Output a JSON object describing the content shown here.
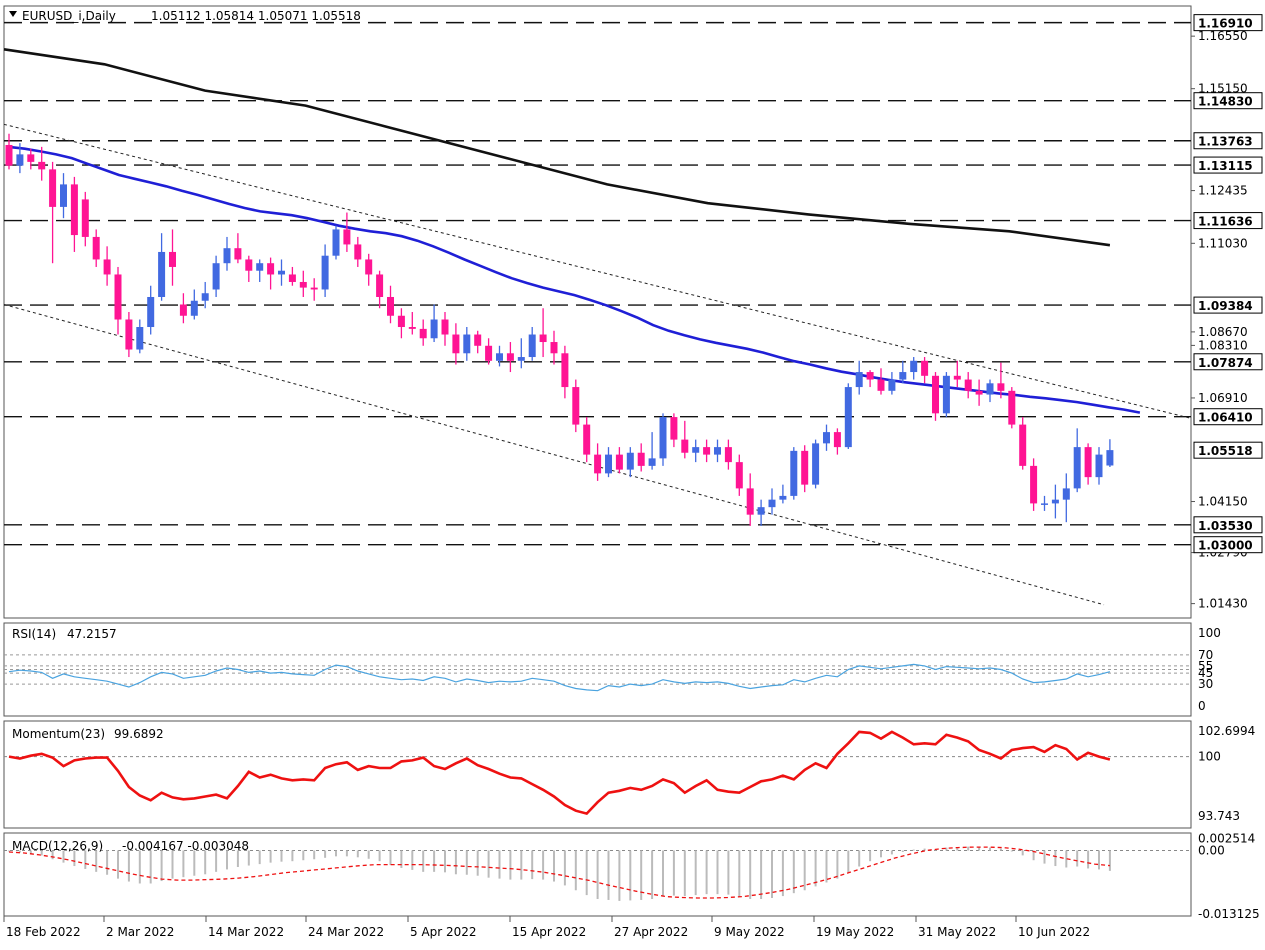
{
  "header": {
    "symbol": "EURUSD_i,Daily",
    "ohlc": "1.05112 1.05814 1.05071 1.05518"
  },
  "colors": {
    "bull": "#4169e1",
    "bear": "#ff1493",
    "ma_fast": "#1f1fd6",
    "ma_slow": "#111111",
    "rsi": "#4aa3df",
    "momentum": "#ee1111",
    "macd_hist": "#bbbbbb",
    "macd_signal": "#ee1111"
  },
  "chart_data": [
    {
      "type": "candlestick",
      "name": "EURUSD_i,Daily",
      "ylim": [
        1.011,
        1.173
      ],
      "y_ticks": [
        "1.16550",
        "1.15150",
        "1.12435",
        "1.11030",
        "1.08670",
        "1.08310",
        "1.06910",
        "1.04150",
        "1.02790",
        "1.01430"
      ],
      "x_labels": [
        "18 Feb 2022",
        "2 Mar 2022",
        "14 Mar 2022",
        "24 Mar 2022",
        "5 Apr 2022",
        "15 Apr 2022",
        "27 Apr 2022",
        "9 May 2022",
        "19 May 2022",
        "31 May 2022",
        "10 Jun 2022"
      ],
      "horizontal_levels": [
        "1.16910",
        "1.14830",
        "1.13763",
        "1.13115",
        "1.11636",
        "1.09384",
        "1.07874",
        "1.06410",
        "1.05518",
        "1.03530",
        "1.03000"
      ],
      "ohlc": [
        [
          1.1365,
          1.1395,
          1.13,
          1.131
        ],
        [
          1.131,
          1.137,
          1.129,
          1.134
        ],
        [
          1.134,
          1.1355,
          1.13,
          1.132
        ],
        [
          1.132,
          1.136,
          1.127,
          1.13
        ],
        [
          1.13,
          1.132,
          1.105,
          1.12
        ],
        [
          1.12,
          1.129,
          1.117,
          1.126
        ],
        [
          1.126,
          1.128,
          1.108,
          1.1125
        ],
        [
          1.122,
          1.124,
          1.1095,
          1.112
        ],
        [
          1.112,
          1.114,
          1.104,
          1.106
        ],
        [
          1.106,
          1.1095,
          1.099,
          1.102
        ],
        [
          1.102,
          1.104,
          1.086,
          1.09
        ],
        [
          1.09,
          1.092,
          1.08,
          1.082
        ],
        [
          1.082,
          1.09,
          1.081,
          1.088
        ],
        [
          1.088,
          1.099,
          1.086,
          1.096
        ],
        [
          1.096,
          1.113,
          1.095,
          1.108
        ],
        [
          1.108,
          1.114,
          1.099,
          1.104
        ],
        [
          1.094,
          1.097,
          1.089,
          1.091
        ],
        [
          1.091,
          1.098,
          1.09,
          1.095
        ],
        [
          1.095,
          1.1,
          1.093,
          1.097
        ],
        [
          1.098,
          1.107,
          1.096,
          1.105
        ],
        [
          1.105,
          1.112,
          1.103,
          1.109
        ],
        [
          1.109,
          1.113,
          1.105,
          1.106
        ],
        [
          1.106,
          1.107,
          1.1,
          1.103
        ],
        [
          1.103,
          1.106,
          1.1,
          1.105
        ],
        [
          1.105,
          1.1065,
          1.098,
          1.102
        ],
        [
          1.102,
          1.106,
          1.099,
          1.103
        ],
        [
          1.102,
          1.104,
          1.099,
          1.1
        ],
        [
          1.1,
          1.103,
          1.096,
          1.0985
        ],
        [
          1.0985,
          1.101,
          1.095,
          1.098
        ],
        [
          1.098,
          1.11,
          1.096,
          1.107
        ],
        [
          1.107,
          1.115,
          1.106,
          1.114
        ],
        [
          1.114,
          1.1185,
          1.108,
          1.11
        ],
        [
          1.11,
          1.112,
          1.104,
          1.106
        ],
        [
          1.106,
          1.1075,
          1.099,
          1.102
        ],
        [
          1.102,
          1.103,
          1.093,
          1.096
        ],
        [
          1.096,
          1.099,
          1.089,
          1.091
        ],
        [
          1.091,
          1.093,
          1.085,
          1.088
        ],
        [
          1.088,
          1.092,
          1.086,
          1.0875
        ],
        [
          1.0875,
          1.09,
          1.083,
          1.085
        ],
        [
          1.085,
          1.094,
          1.084,
          1.09
        ],
        [
          1.09,
          1.092,
          1.083,
          1.086
        ],
        [
          1.086,
          1.089,
          1.078,
          1.081
        ],
        [
          1.081,
          1.088,
          1.079,
          1.086
        ],
        [
          1.086,
          1.087,
          1.081,
          1.083
        ],
        [
          1.083,
          1.085,
          1.078,
          1.079
        ],
        [
          1.079,
          1.083,
          1.0775,
          1.081
        ],
        [
          1.081,
          1.084,
          1.076,
          1.079
        ],
        [
          1.079,
          1.085,
          1.077,
          1.08
        ],
        [
          1.08,
          1.088,
          1.079,
          1.086
        ],
        [
          1.086,
          1.093,
          1.08,
          1.084
        ],
        [
          1.084,
          1.087,
          1.078,
          1.081
        ],
        [
          1.081,
          1.083,
          1.069,
          1.072
        ],
        [
          1.072,
          1.074,
          1.06,
          1.062
        ],
        [
          1.062,
          1.064,
          1.052,
          1.054
        ],
        [
          1.054,
          1.057,
          1.047,
          1.049
        ],
        [
          1.049,
          1.056,
          1.048,
          1.054
        ],
        [
          1.054,
          1.056,
          1.049,
          1.05
        ],
        [
          1.05,
          1.056,
          1.048,
          1.0545
        ],
        [
          1.0545,
          1.057,
          1.0495,
          1.051
        ],
        [
          1.051,
          1.06,
          1.05,
          1.053
        ],
        [
          1.053,
          1.065,
          1.051,
          1.064
        ],
        [
          1.064,
          1.065,
          1.056,
          1.058
        ],
        [
          1.058,
          1.063,
          1.053,
          1.0545
        ],
        [
          1.0545,
          1.058,
          1.052,
          1.056
        ],
        [
          1.056,
          1.058,
          1.052,
          1.054
        ],
        [
          1.054,
          1.058,
          1.052,
          1.056
        ],
        [
          1.056,
          1.058,
          1.05,
          1.052
        ],
        [
          1.052,
          1.054,
          1.043,
          1.045
        ],
        [
          1.045,
          1.049,
          1.035,
          1.038
        ],
        [
          1.038,
          1.042,
          1.035,
          1.04
        ],
        [
          1.04,
          1.045,
          1.038,
          1.042
        ],
        [
          1.042,
          1.046,
          1.041,
          1.043
        ],
        [
          1.043,
          1.056,
          1.042,
          1.055
        ],
        [
          1.055,
          1.0565,
          1.044,
          1.046
        ],
        [
          1.046,
          1.058,
          1.045,
          1.057
        ],
        [
          1.057,
          1.062,
          1.055,
          1.06
        ],
        [
          1.06,
          1.061,
          1.054,
          1.056
        ],
        [
          1.056,
          1.073,
          1.0555,
          1.072
        ],
        [
          1.072,
          1.079,
          1.07,
          1.076
        ],
        [
          1.076,
          1.0765,
          1.072,
          1.074
        ],
        [
          1.074,
          1.077,
          1.07,
          1.071
        ],
        [
          1.071,
          1.076,
          1.07,
          1.074
        ],
        [
          1.074,
          1.079,
          1.073,
          1.076
        ],
        [
          1.076,
          1.08,
          1.074,
          1.079
        ],
        [
          1.079,
          1.08,
          1.073,
          1.075
        ],
        [
          1.075,
          1.076,
          1.063,
          1.065
        ],
        [
          1.065,
          1.076,
          1.064,
          1.075
        ],
        [
          1.075,
          1.079,
          1.072,
          1.074
        ],
        [
          1.074,
          1.076,
          1.069,
          1.071
        ],
        [
          1.071,
          1.074,
          1.067,
          1.07
        ],
        [
          1.07,
          1.074,
          1.068,
          1.073
        ],
        [
          1.073,
          1.0785,
          1.069,
          1.071
        ],
        [
          1.071,
          1.072,
          1.061,
          1.062
        ],
        [
          1.062,
          1.064,
          1.05,
          1.051
        ],
        [
          1.051,
          1.053,
          1.039,
          1.041
        ],
        [
          1.041,
          1.043,
          1.039,
          1.041
        ],
        [
          1.041,
          1.046,
          1.037,
          1.042
        ],
        [
          1.042,
          1.049,
          1.036,
          1.045
        ],
        [
          1.045,
          1.061,
          1.044,
          1.056
        ],
        [
          1.056,
          1.057,
          1.046,
          1.048
        ],
        [
          1.048,
          1.056,
          1.046,
          1.054
        ],
        [
          1.0511,
          1.0581,
          1.0507,
          1.0552
        ]
      ],
      "ma_fast": [
        1.136,
        1.1355,
        1.1348,
        1.134,
        1.133,
        1.1315,
        1.13,
        1.1285,
        1.1275,
        1.1265,
        1.1255,
        1.1243,
        1.1232,
        1.122,
        1.1208,
        1.1197,
        1.1188,
        1.1183,
        1.1178,
        1.117,
        1.116,
        1.115,
        1.1142,
        1.1135,
        1.113,
        1.1122,
        1.111,
        1.1095,
        1.1078,
        1.106,
        1.1043,
        1.1026,
        1.101,
        1.0997,
        1.0985,
        1.0975,
        1.0965,
        1.0952,
        1.0938,
        1.0922,
        1.0905,
        1.0885,
        1.087,
        1.0858,
        1.0847,
        1.0838,
        1.083,
        1.0822,
        1.0812,
        1.08,
        1.0789,
        1.078,
        1.077,
        1.0761,
        1.0754,
        1.0746,
        1.0739,
        1.0733,
        1.0728,
        1.0723,
        1.0718,
        1.0713,
        1.0708,
        1.0703,
        1.0699,
        1.0694,
        1.069,
        1.0685,
        1.068,
        1.0673,
        1.0666,
        1.066,
        1.0652
      ],
      "ma_slow": [
        1.162,
        1.158,
        1.151,
        1.147,
        1.14,
        1.133,
        1.126,
        1.121,
        1.118,
        1.1155,
        1.1135,
        1.1098
      ],
      "channel_upper": [
        [
          1.142,
          1.0638
        ]
      ],
      "channel_lower": [
        [
          1.094,
          1.014
        ]
      ]
    },
    {
      "type": "line",
      "name": "RSI(14)",
      "value_label": "47.2157",
      "ylim": [
        0,
        100
      ],
      "y_ticks": [
        "100",
        "70",
        "55",
        "45",
        "30",
        "0"
      ],
      "levels": [
        70,
        55,
        50,
        45,
        30
      ],
      "values": [
        47,
        49,
        48,
        46,
        38,
        44,
        40,
        38,
        36,
        34,
        30,
        26,
        32,
        40,
        46,
        44,
        38,
        40,
        42,
        48,
        52,
        50,
        46,
        48,
        45,
        46,
        44,
        43,
        42,
        50,
        56,
        54,
        48,
        44,
        40,
        38,
        36,
        37,
        35,
        40,
        38,
        33,
        37,
        35,
        32,
        34,
        33,
        34,
        38,
        36,
        34,
        28,
        24,
        22,
        21,
        28,
        26,
        30,
        28,
        30,
        36,
        33,
        31,
        33,
        32,
        33,
        31,
        27,
        24,
        26,
        28,
        29,
        36,
        33,
        38,
        42,
        40,
        50,
        55,
        53,
        51,
        53,
        55,
        57,
        55,
        50,
        54,
        53,
        52,
        51,
        52,
        50,
        45,
        37,
        32,
        33,
        35,
        37,
        44,
        40,
        43,
        47
      ]
    },
    {
      "type": "line",
      "name": "Momentum(23)",
      "value_label": "99.6892",
      "ylim": [
        93.743,
        102.6994
      ],
      "y_ticks": [
        "102.6994",
        "100",
        "93.743"
      ],
      "levels": [
        100
      ],
      "values": [
        100.0,
        99.8,
        100.1,
        100.3,
        99.9,
        99.0,
        99.6,
        99.8,
        99.9,
        99.9,
        98.5,
        96.8,
        95.9,
        95.4,
        96.2,
        95.7,
        95.5,
        95.6,
        95.8,
        96.0,
        95.6,
        96.9,
        98.4,
        97.8,
        98.1,
        97.7,
        97.5,
        97.6,
        97.5,
        98.8,
        99.2,
        99.4,
        98.6,
        99.0,
        98.8,
        98.8,
        99.5,
        99.6,
        99.9,
        99.0,
        98.7,
        99.3,
        99.8,
        99.1,
        98.7,
        98.2,
        97.8,
        97.7,
        97.1,
        96.5,
        95.8,
        94.9,
        94.3,
        94.0,
        95.2,
        96.2,
        96.4,
        96.7,
        96.5,
        96.9,
        97.6,
        97.2,
        96.2,
        96.9,
        97.5,
        96.5,
        96.3,
        96.2,
        96.8,
        97.4,
        97.6,
        98.0,
        97.6,
        98.6,
        99.3,
        98.8,
        100.3,
        101.4,
        102.6,
        102.5,
        101.9,
        102.6,
        102.0,
        101.3,
        101.4,
        101.3,
        102.3,
        102.0,
        101.6,
        100.7,
        100.3,
        99.8,
        100.7,
        100.9,
        101.0,
        100.5,
        101.2,
        100.8,
        99.7,
        100.4,
        100.0,
        99.7
      ]
    },
    {
      "type": "bar+line",
      "name": "MACD(12,26,9)",
      "value_label": "-0.004167 -0.003048",
      "ylim": [
        -0.0131,
        0.003
      ],
      "y_ticks": [
        "0.002514",
        "0.00",
        "-0.013125"
      ],
      "histogram": [
        -0.0002,
        -0.0004,
        -0.0006,
        -0.001,
        -0.0018,
        -0.0025,
        -0.0032,
        -0.0038,
        -0.0044,
        -0.005,
        -0.0058,
        -0.0064,
        -0.0068,
        -0.0068,
        -0.0063,
        -0.0058,
        -0.0055,
        -0.0052,
        -0.0049,
        -0.0044,
        -0.0039,
        -0.0034,
        -0.0031,
        -0.0028,
        -0.0025,
        -0.0023,
        -0.0022,
        -0.002,
        -0.0018,
        -0.0015,
        -0.0012,
        -0.0012,
        -0.0014,
        -0.0017,
        -0.0022,
        -0.003,
        -0.0036,
        -0.004,
        -0.0044,
        -0.0044,
        -0.0045,
        -0.0049,
        -0.005,
        -0.0052,
        -0.0056,
        -0.0058,
        -0.006,
        -0.006,
        -0.0059,
        -0.006,
        -0.0064,
        -0.0072,
        -0.0082,
        -0.0092,
        -0.01,
        -0.0102,
        -0.0104,
        -0.0103,
        -0.0102,
        -0.01,
        -0.0095,
        -0.0093,
        -0.0094,
        -0.0092,
        -0.009,
        -0.009,
        -0.0091,
        -0.0095,
        -0.01,
        -0.01,
        -0.0098,
        -0.0094,
        -0.0088,
        -0.0082,
        -0.0074,
        -0.0066,
        -0.0058,
        -0.0045,
        -0.0033,
        -0.0022,
        -0.0014,
        -0.0008,
        -0.0003,
        0.0002,
        0.0004,
        0.0003,
        0.0006,
        0.0007,
        0.0008,
        0.0007,
        0.0006,
        0.0004,
        -0.0002,
        -0.001,
        -0.002,
        -0.0027,
        -0.0032,
        -0.0035,
        -0.0033,
        -0.0037,
        -0.0039,
        -0.0042
      ],
      "signal": [
        -0.0003,
        -0.0005,
        -0.0009,
        -0.0014,
        -0.002,
        -0.0027,
        -0.0034,
        -0.0041,
        -0.0048,
        -0.0054,
        -0.0059,
        -0.0061,
        -0.0061,
        -0.006,
        -0.0059,
        -0.0057,
        -0.0054,
        -0.005,
        -0.0046,
        -0.0043,
        -0.004,
        -0.0037,
        -0.0034,
        -0.0031,
        -0.0029,
        -0.0029,
        -0.0029,
        -0.0029,
        -0.003,
        -0.0031,
        -0.0033,
        -0.0034,
        -0.0036,
        -0.0038,
        -0.0041,
        -0.0045,
        -0.005,
        -0.0056,
        -0.0062,
        -0.007,
        -0.0077,
        -0.0084,
        -0.009,
        -0.0095,
        -0.0097,
        -0.0098,
        -0.0098,
        -0.0097,
        -0.0095,
        -0.0091,
        -0.0086,
        -0.008,
        -0.0072,
        -0.0064,
        -0.0055,
        -0.0045,
        -0.0035,
        -0.0025,
        -0.0015,
        -0.0007,
        0.0,
        0.0004,
        0.0006,
        0.0007,
        0.0007,
        0.0006,
        0.0003,
        -0.0002,
        -0.0009,
        -0.0016,
        -0.0022,
        -0.0028,
        -0.0031
      ]
    }
  ]
}
